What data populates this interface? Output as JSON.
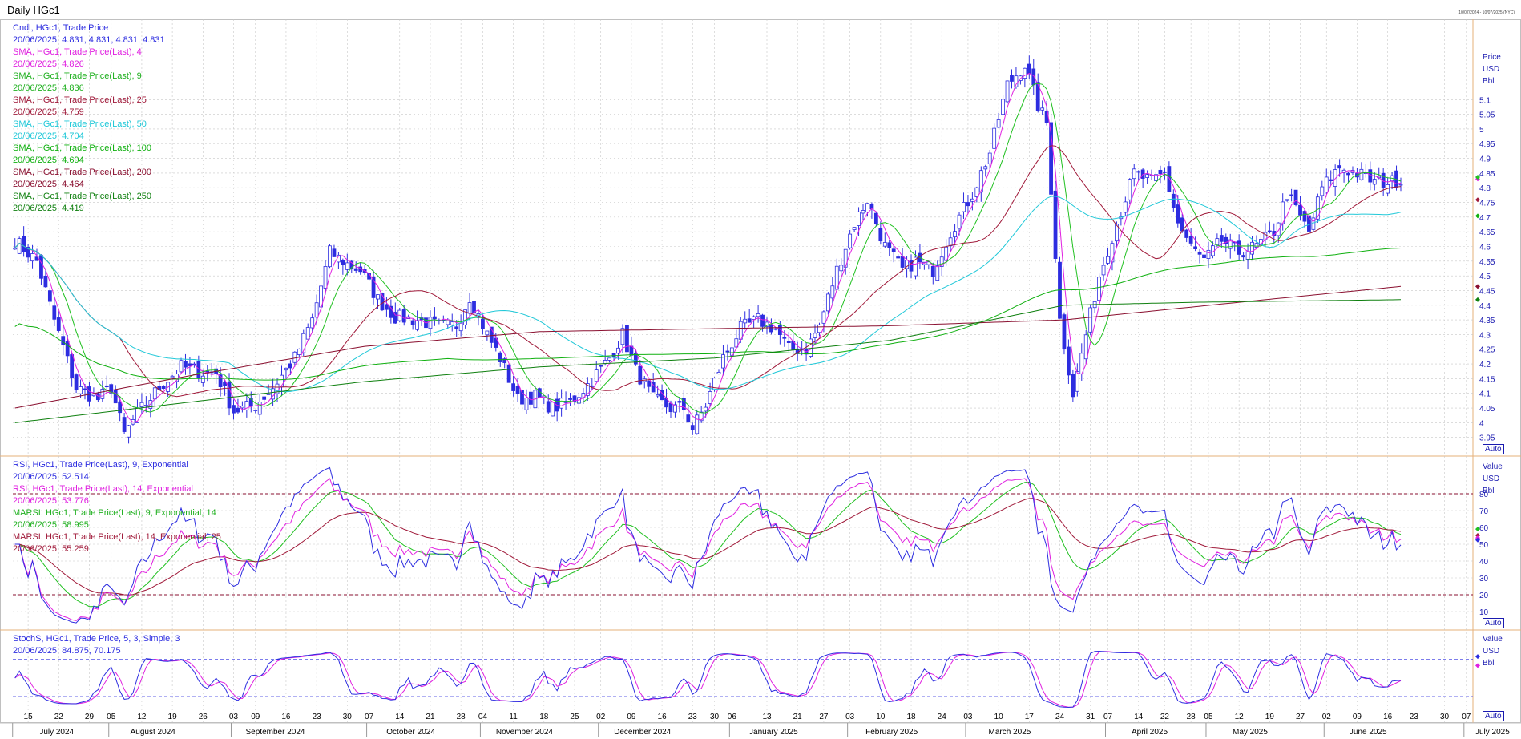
{
  "window": {
    "title": "Daily HGc1",
    "date_range": "10/07/2024 - 10/07/2025 (NYC)"
  },
  "colors": {
    "candle": "#2d2de0",
    "sma4": "#e020e0",
    "sma9": "#20c020",
    "sma25": "#a01a3a",
    "sma50": "#20c8d8",
    "sma100": "#10b010",
    "sma200": "#8a1030",
    "sma250": "#108010",
    "rsi9": "#2d2de0",
    "rsi14": "#e020e0",
    "marsi9": "#20c020",
    "marsi14": "#a01a3a",
    "stoch_k": "#2d2de0",
    "stoch_d": "#e020e0",
    "axis": "#1a1ab0",
    "grid": "#c8c8c8"
  },
  "panels": {
    "price": {
      "legend": [
        {
          "name": "Cndl, HGc1, Trade Price",
          "value": "20/06/2025, 4.831, 4.831, 4.831, 4.831",
          "color": "#2d2de0"
        },
        {
          "name": "SMA, HGc1, Trade Price(Last),  4",
          "value": "20/06/2025, 4.826",
          "color": "#e020e0"
        },
        {
          "name": "SMA, HGc1, Trade Price(Last),  9",
          "value": "20/06/2025, 4.836",
          "color": "#20b020"
        },
        {
          "name": "SMA, HGc1, Trade Price(Last),  25",
          "value": "20/06/2025, 4.759",
          "color": "#a01a3a"
        },
        {
          "name": "SMA, HGc1, Trade Price(Last),  50",
          "value": "20/06/2025, 4.704",
          "color": "#20c8d8"
        },
        {
          "name": "SMA, HGc1, Trade Price(Last),  100",
          "value": "20/06/2025, 4.694",
          "color": "#10b010"
        },
        {
          "name": "SMA, HGc1, Trade Price(Last),  200",
          "value": "20/06/2025, 4.464",
          "color": "#8a1030"
        },
        {
          "name": "SMA, HGc1, Trade Price(Last),  250",
          "value": "20/06/2025, 4.419",
          "color": "#108010"
        }
      ],
      "axis_title": [
        "Price",
        "USD",
        "Bbl"
      ],
      "auto_label": "Auto"
    },
    "rsi": {
      "legend": [
        {
          "name": "RSI, HGc1, Trade Price(Last),  9, Exponential",
          "value": "20/06/2025, 52.514",
          "color": "#2d2de0"
        },
        {
          "name": "RSI, HGc1, Trade Price(Last),  14, Exponential",
          "value": "20/06/2025, 53.776",
          "color": "#e020e0"
        },
        {
          "name": "MARSI, HGc1, Trade Price(Last),  9, Exponential, 14",
          "value": "20/06/2025, 58.995",
          "color": "#20b020"
        },
        {
          "name": "MARSI, HGc1, Trade Price(Last),  14, Exponential, 25",
          "value": "20/06/2025, 55.259",
          "color": "#a01a3a"
        }
      ],
      "axis_title": [
        "Value",
        "USD",
        "Bbl"
      ],
      "auto_label": "Auto"
    },
    "stoch": {
      "legend": [
        {
          "name": "StochS, HGc1, Trade Price,  5, 3, Simple, 3",
          "value": "20/06/2025, 84.875, 70.175",
          "color": "#2d2de0"
        }
      ],
      "axis_title": [
        "Value",
        "USD",
        "Bbl"
      ],
      "auto_label": "Auto"
    }
  },
  "chart_data": [
    {
      "type": "candlestick",
      "panel": "price",
      "y_ticks": [
        3.95,
        4,
        4.05,
        4.1,
        4.15,
        4.2,
        4.25,
        4.3,
        4.35,
        4.4,
        4.45,
        4.5,
        4.55,
        4.6,
        4.65,
        4.7,
        4.75,
        4.8,
        4.85,
        4.9,
        4.95,
        5,
        5.05,
        5.1
      ],
      "ylim": [
        3.9,
        5.33
      ],
      "close_keypoints": [
        [
          0,
          4.62
        ],
        [
          5,
          4.55
        ],
        [
          9,
          4.35
        ],
        [
          14,
          4.12
        ],
        [
          19,
          4.08
        ],
        [
          22,
          4.12
        ],
        [
          25,
          3.96
        ],
        [
          28,
          4.03
        ],
        [
          33,
          4.12
        ],
        [
          38,
          4.19
        ],
        [
          43,
          4.17
        ],
        [
          46,
          4.17
        ],
        [
          50,
          4.04
        ],
        [
          55,
          4.06
        ],
        [
          59,
          4.12
        ],
        [
          64,
          4.22
        ],
        [
          68,
          4.35
        ],
        [
          72,
          4.58
        ],
        [
          76,
          4.54
        ],
        [
          79,
          4.52
        ],
        [
          83,
          4.42
        ],
        [
          87,
          4.36
        ],
        [
          92,
          4.35
        ],
        [
          97,
          4.33
        ],
        [
          101,
          4.33
        ],
        [
          104,
          4.43
        ],
        [
          108,
          4.3
        ],
        [
          111,
          4.22
        ],
        [
          115,
          4.08
        ],
        [
          119,
          4.09
        ],
        [
          123,
          4.05
        ],
        [
          127,
          4.07
        ],
        [
          131,
          4.13
        ],
        [
          136,
          4.22
        ],
        [
          139,
          4.3
        ],
        [
          142,
          4.18
        ],
        [
          146,
          4.08
        ],
        [
          150,
          4.05
        ],
        [
          153,
          4.05
        ],
        [
          155,
          3.98
        ],
        [
          158,
          4.06
        ],
        [
          162,
          4.22
        ],
        [
          166,
          4.32
        ],
        [
          170,
          4.35
        ],
        [
          174,
          4.32
        ],
        [
          177,
          4.25
        ],
        [
          181,
          4.25
        ],
        [
          184,
          4.33
        ],
        [
          188,
          4.52
        ],
        [
          192,
          4.68
        ],
        [
          195,
          4.76
        ],
        [
          199,
          4.6
        ],
        [
          203,
          4.52
        ],
        [
          206,
          4.55
        ],
        [
          210,
          4.52
        ],
        [
          214,
          4.65
        ],
        [
          219,
          4.78
        ],
        [
          223,
          4.92
        ],
        [
          227,
          5.15
        ],
        [
          231,
          5.22
        ],
        [
          234,
          5.08
        ],
        [
          236,
          5.02
        ],
        [
          239,
          4.35
        ],
        [
          242,
          4.1
        ],
        [
          245,
          4.3
        ],
        [
          248,
          4.5
        ],
        [
          252,
          4.68
        ],
        [
          256,
          4.85
        ],
        [
          260,
          4.82
        ],
        [
          263,
          4.85
        ],
        [
          266,
          4.68
        ],
        [
          269,
          4.6
        ],
        [
          272,
          4.55
        ],
        [
          276,
          4.62
        ],
        [
          280,
          4.58
        ],
        [
          284,
          4.6
        ],
        [
          288,
          4.65
        ],
        [
          291,
          4.78
        ],
        [
          294,
          4.7
        ],
        [
          296,
          4.65
        ],
        [
          299,
          4.8
        ],
        [
          303,
          4.87
        ],
        [
          307,
          4.85
        ],
        [
          311,
          4.82
        ],
        [
          315,
          4.82
        ],
        [
          317,
          4.83
        ]
      ],
      "series": [
        {
          "name": "SMA 4",
          "last": 4.826
        },
        {
          "name": "SMA 9",
          "last": 4.836
        },
        {
          "name": "SMA 25",
          "last": 4.759
        },
        {
          "name": "SMA 50",
          "last": 4.704
        },
        {
          "name": "SMA 100",
          "last": 4.694
        },
        {
          "name": "SMA 200",
          "last": 4.464
        },
        {
          "name": "SMA 250",
          "last": 4.419
        }
      ],
      "sma200_keypoints": [
        [
          0,
          4.05
        ],
        [
          40,
          4.16
        ],
        [
          80,
          4.26
        ],
        [
          120,
          4.31
        ],
        [
          160,
          4.32
        ],
        [
          200,
          4.33
        ],
        [
          240,
          4.35
        ],
        [
          280,
          4.41
        ],
        [
          317,
          4.464
        ]
      ],
      "sma250_keypoints": [
        [
          0,
          4.0
        ],
        [
          40,
          4.07
        ],
        [
          80,
          4.14
        ],
        [
          120,
          4.19
        ],
        [
          160,
          4.22
        ],
        [
          200,
          4.28
        ],
        [
          240,
          4.4
        ],
        [
          270,
          4.41
        ],
        [
          317,
          4.419
        ]
      ]
    },
    {
      "type": "line",
      "panel": "rsi",
      "y_ticks": [
        10,
        20,
        30,
        40,
        50,
        60,
        70,
        80
      ],
      "ylim": [
        0,
        100
      ],
      "reference_lines": [
        20,
        80
      ],
      "series": [
        {
          "name": "RSI 9",
          "last": 52.514
        },
        {
          "name": "RSI 14",
          "last": 53.776
        },
        {
          "name": "MARSI 9",
          "last": 58.995
        },
        {
          "name": "MARSI 14",
          "last": 55.259
        }
      ]
    },
    {
      "type": "line",
      "panel": "stoch",
      "y_ticks": [],
      "ylim": [
        0,
        100
      ],
      "reference_lines": [
        20,
        80
      ],
      "series": [
        {
          "name": "StochS %K",
          "last": 84.875
        },
        {
          "name": "StochS %D",
          "last": 70.175
        }
      ]
    }
  ],
  "x_axis": {
    "day_ticks": [
      [
        3,
        "15"
      ],
      [
        10,
        "22"
      ],
      [
        17,
        "29"
      ],
      [
        22,
        "05"
      ],
      [
        29,
        "12"
      ],
      [
        36,
        "19"
      ],
      [
        43,
        "26"
      ],
      [
        50,
        "03"
      ],
      [
        55,
        "09"
      ],
      [
        62,
        "16"
      ],
      [
        69,
        "23"
      ],
      [
        76,
        "30"
      ],
      [
        81,
        "07"
      ],
      [
        88,
        "14"
      ],
      [
        95,
        "21"
      ],
      [
        102,
        "28"
      ],
      [
        107,
        "04"
      ],
      [
        114,
        "11"
      ],
      [
        121,
        "18"
      ],
      [
        128,
        "25"
      ],
      [
        134,
        "02"
      ],
      [
        141,
        "09"
      ],
      [
        148,
        "16"
      ],
      [
        155,
        "23"
      ],
      [
        160,
        "30"
      ],
      [
        164,
        "06"
      ],
      [
        172,
        "13"
      ],
      [
        179,
        "21"
      ],
      [
        185,
        "27"
      ],
      [
        191,
        "03"
      ],
      [
        198,
        "10"
      ],
      [
        205,
        "18"
      ],
      [
        212,
        "24"
      ],
      [
        218,
        "03"
      ],
      [
        225,
        "10"
      ],
      [
        232,
        "17"
      ],
      [
        239,
        "24"
      ],
      [
        246,
        "31"
      ],
      [
        250,
        "07"
      ],
      [
        257,
        "14"
      ],
      [
        263,
        "22"
      ],
      [
        269,
        "28"
      ],
      [
        273,
        "05"
      ],
      [
        280,
        "12"
      ],
      [
        287,
        "19"
      ],
      [
        294,
        "27"
      ],
      [
        300,
        "02"
      ],
      [
        307,
        "09"
      ],
      [
        314,
        "16"
      ],
      [
        320,
        "23"
      ],
      [
        327,
        "30"
      ],
      [
        332,
        "07"
      ]
    ],
    "month_labels": [
      [
        0,
        "July 2024"
      ],
      [
        22,
        "August 2024"
      ],
      [
        50,
        "September 2024"
      ],
      [
        81,
        "October 2024"
      ],
      [
        107,
        "November 2024"
      ],
      [
        134,
        "December 2024"
      ],
      [
        164,
        "January 2025"
      ],
      [
        191,
        "February 2025"
      ],
      [
        218,
        "March 2025"
      ],
      [
        250,
        "April 2025"
      ],
      [
        273,
        "May 2025"
      ],
      [
        300,
        "June 2025"
      ],
      [
        332,
        "July 2025"
      ]
    ]
  }
}
